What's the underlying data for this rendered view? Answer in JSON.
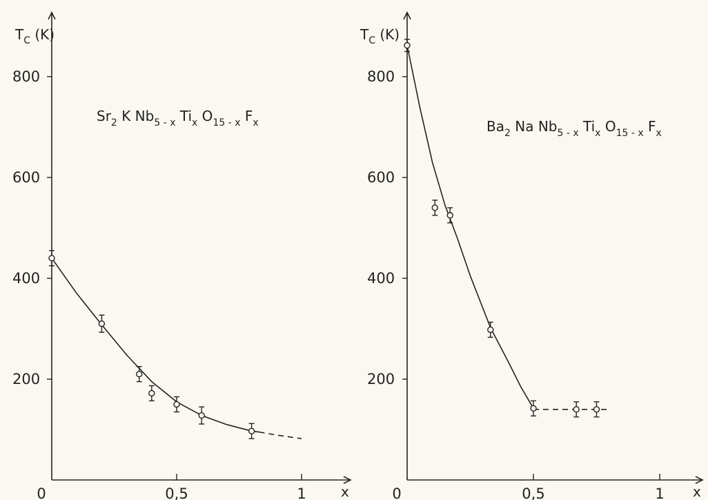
{
  "chart_data": [
    {
      "type": "scatter",
      "title": "",
      "ylabel": "T_C (K)",
      "ylabel_main": "T",
      "ylabel_sub": "C",
      "ylabel_unit": "(K)",
      "xlabel": "x",
      "xlim": [
        0,
        1.05
      ],
      "ylim": [
        0,
        880
      ],
      "x_ticks": [
        0,
        0.5,
        1
      ],
      "x_tick_labels": [
        "0",
        "0,5",
        "1"
      ],
      "y_ticks": [
        200,
        400,
        600,
        800
      ],
      "y_tick_labels": [
        "200",
        "400",
        "600",
        "800"
      ],
      "compound": {
        "parts": [
          {
            "t": "Sr",
            "sub": false
          },
          {
            "t": "2",
            "sub": true
          },
          {
            "t": " K Nb",
            "sub": false
          },
          {
            "t": "5 - x",
            "sub": true
          },
          {
            "t": " Ti",
            "sub": false
          },
          {
            "t": "x",
            "sub": true
          },
          {
            "t": " O",
            "sub": false
          },
          {
            "t": "15 - x",
            "sub": true
          },
          {
            "t": " F",
            "sub": false
          },
          {
            "t": "x",
            "sub": true
          }
        ]
      },
      "points": [
        {
          "x": 0.0,
          "y": 440,
          "err": 15
        },
        {
          "x": 0.2,
          "y": 310,
          "err": 17
        },
        {
          "x": 0.35,
          "y": 210,
          "err": 15
        },
        {
          "x": 0.4,
          "y": 172,
          "err": 15
        },
        {
          "x": 0.5,
          "y": 150,
          "err": 15
        },
        {
          "x": 0.6,
          "y": 128,
          "err": 17
        },
        {
          "x": 0.8,
          "y": 97,
          "err": 15
        }
      ],
      "curve_solid": [
        [
          0,
          440
        ],
        [
          0.1,
          370
        ],
        [
          0.2,
          308
        ],
        [
          0.3,
          248
        ],
        [
          0.4,
          195
        ],
        [
          0.5,
          155
        ],
        [
          0.6,
          128
        ],
        [
          0.7,
          110
        ],
        [
          0.8,
          97
        ],
        [
          0.83,
          95
        ]
      ],
      "curve_dashed": [
        [
          0.83,
          95
        ],
        [
          0.9,
          89
        ],
        [
          1.0,
          82
        ]
      ]
    },
    {
      "type": "scatter",
      "title": "",
      "ylabel": "T_C (K)",
      "ylabel_main": "T",
      "ylabel_sub": "C",
      "ylabel_unit": "(K)",
      "xlabel": "x",
      "xlim": [
        0,
        1.1
      ],
      "ylim": [
        0,
        880
      ],
      "x_ticks": [
        0,
        0.5,
        1
      ],
      "x_tick_labels": [
        "0",
        "0,5",
        "1"
      ],
      "y_ticks": [
        200,
        400,
        600,
        800
      ],
      "y_tick_labels": [
        "200",
        "400",
        "600",
        "800"
      ],
      "compound": {
        "parts": [
          {
            "t": "Ba",
            "sub": false
          },
          {
            "t": "2",
            "sub": true
          },
          {
            "t": " Na Nb",
            "sub": false
          },
          {
            "t": "5 - x",
            "sub": true
          },
          {
            "t": " Ti",
            "sub": false
          },
          {
            "t": "x",
            "sub": true
          },
          {
            "t": " O",
            "sub": false
          },
          {
            "t": "15 - x",
            "sub": true
          },
          {
            "t": " F",
            "sub": false
          },
          {
            "t": "x",
            "sub": true
          }
        ]
      },
      "points": [
        {
          "x": 0.0,
          "y": 862,
          "err": 12
        },
        {
          "x": 0.11,
          "y": 540,
          "err": 15
        },
        {
          "x": 0.17,
          "y": 525,
          "err": 15
        },
        {
          "x": 0.33,
          "y": 298,
          "err": 15
        },
        {
          "x": 0.5,
          "y": 142,
          "err": 15
        },
        {
          "x": 0.67,
          "y": 140,
          "err": 15
        },
        {
          "x": 0.75,
          "y": 140,
          "err": 15
        }
      ],
      "curve_solid": [
        [
          0,
          862
        ],
        [
          0.05,
          740
        ],
        [
          0.1,
          630
        ],
        [
          0.15,
          545
        ],
        [
          0.2,
          478
        ],
        [
          0.25,
          405
        ],
        [
          0.33,
          302
        ],
        [
          0.4,
          235
        ],
        [
          0.45,
          185
        ],
        [
          0.5,
          142
        ]
      ],
      "curve_dashed": [
        [
          0.5,
          140
        ],
        [
          0.8,
          140
        ]
      ]
    }
  ]
}
